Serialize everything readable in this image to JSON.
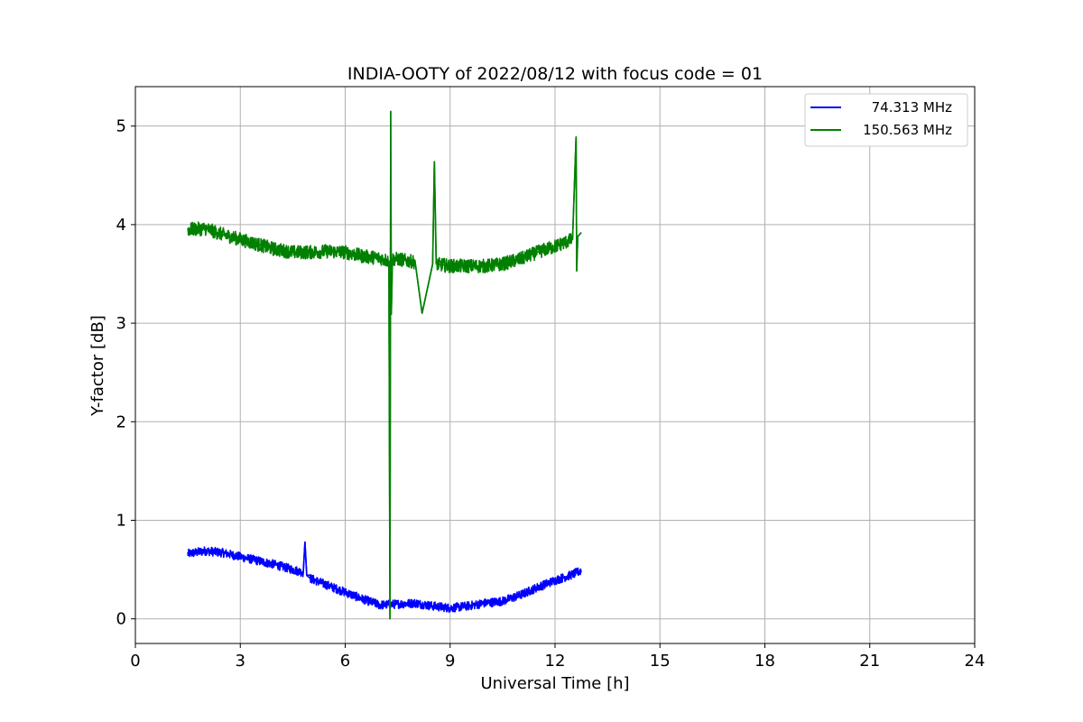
{
  "chart_data": {
    "type": "line",
    "title": "INDIA-OOTY of 2022/08/12 with focus code = 01",
    "xlabel": "Universal Time [h]",
    "ylabel": "Y-factor [dB]",
    "xlim": [
      0,
      24
    ],
    "ylim": [
      -0.25,
      5.4
    ],
    "xticks": [
      0,
      3,
      6,
      9,
      12,
      15,
      18,
      21,
      24
    ],
    "yticks": [
      0,
      1,
      2,
      3,
      4,
      5
    ],
    "grid": true,
    "legend_position": "top-right",
    "series": [
      {
        "name": "74.313 MHz",
        "color": "#0000ff",
        "x": [
          1.5,
          2.0,
          2.5,
          3.0,
          3.5,
          4.0,
          4.5,
          4.8,
          4.85,
          4.9,
          5.0,
          5.5,
          6.0,
          6.5,
          7.0,
          7.5,
          8.0,
          8.5,
          9.0,
          9.5,
          10.0,
          10.5,
          11.0,
          11.5,
          12.0,
          12.5,
          12.75
        ],
        "y": [
          0.66,
          0.69,
          0.67,
          0.63,
          0.59,
          0.55,
          0.5,
          0.47,
          0.78,
          0.44,
          0.41,
          0.34,
          0.27,
          0.2,
          0.14,
          0.15,
          0.16,
          0.13,
          0.11,
          0.13,
          0.16,
          0.18,
          0.24,
          0.32,
          0.39,
          0.45,
          0.49
        ],
        "noise": 0.045
      },
      {
        "name": "150.563 MHz",
        "color": "#008000",
        "x": [
          1.5,
          2.0,
          2.5,
          3.0,
          3.5,
          4.0,
          4.5,
          5.0,
          5.5,
          6.0,
          6.5,
          7.0,
          7.25,
          7.28,
          7.3,
          7.32,
          7.35,
          7.5,
          8.0,
          8.2,
          8.5,
          8.55,
          8.6,
          9.0,
          9.5,
          10.0,
          10.5,
          11.0,
          11.5,
          12.0,
          12.5,
          12.6,
          12.62,
          12.65,
          12.75
        ],
        "y": [
          3.95,
          3.96,
          3.9,
          3.85,
          3.8,
          3.75,
          3.72,
          3.72,
          3.73,
          3.72,
          3.68,
          3.66,
          3.63,
          0.0,
          5.15,
          3.09,
          3.65,
          3.65,
          3.62,
          3.1,
          3.6,
          4.64,
          3.6,
          3.58,
          3.58,
          3.58,
          3.6,
          3.65,
          3.72,
          3.78,
          3.85,
          4.89,
          3.53,
          3.88,
          3.92
        ],
        "noise": 0.07
      }
    ]
  }
}
